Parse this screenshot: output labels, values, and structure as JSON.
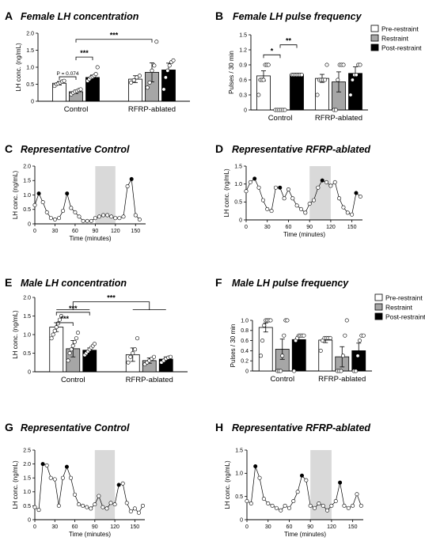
{
  "colors": {
    "pre": "#ffffff",
    "restraint": "#a6a6a6",
    "post": "#000000",
    "shade": "#d9d9d9"
  },
  "legend": [
    "Pre-restraint",
    "Restraint",
    "Post-restraint"
  ],
  "chart_data": [
    {
      "id": "A",
      "type": "bar",
      "label": "A",
      "title": "Female LH concentration",
      "ylabel": "LH conc. (ng/mL)",
      "ylim": [
        0,
        2.0
      ],
      "yticks": [
        0,
        0.5,
        1.0,
        1.5,
        2.0
      ],
      "categories": [
        "Control",
        "RFRP-ablated"
      ],
      "series": [
        {
          "name": "Pre-restraint",
          "values": [
            0.53,
            0.65
          ],
          "errors": [
            0.05,
            0.1
          ],
          "points": [
            [
              0.45,
              0.5,
              0.52,
              0.55,
              0.58,
              0.6
            ],
            [
              0.55,
              0.62,
              0.7,
              0.75
            ]
          ]
        },
        {
          "name": "Restraint",
          "values": [
            0.28,
            0.85
          ],
          "errors": [
            0.05,
            0.28
          ],
          "points": [
            [
              0.2,
              0.25,
              0.28,
              0.3,
              0.33,
              0.35
            ],
            [
              0.4,
              0.55,
              0.9,
              1.05,
              1.75
            ]
          ]
        },
        {
          "name": "Post-restraint",
          "values": [
            0.7,
            0.92
          ],
          "errors": [
            0.07,
            0.2
          ],
          "points": [
            [
              0.6,
              0.65,
              0.7,
              0.72,
              0.75,
              0.8,
              1.0
            ],
            [
              0.35,
              0.7,
              0.9,
              1.05,
              1.15,
              1.2
            ]
          ]
        }
      ],
      "brackets": [
        {
          "from": [
            0,
            0
          ],
          "to": [
            0,
            1
          ],
          "y": 0.72,
          "text": "P = 0.074",
          "kind": "ann"
        },
        {
          "from": [
            0,
            1
          ],
          "to": [
            0,
            2
          ],
          "y": 1.3,
          "text": "***",
          "kind": "sig"
        },
        {
          "from": [
            0,
            1
          ],
          "to": [
            1,
            1
          ],
          "y": 1.82,
          "text": "***",
          "kind": "sig"
        }
      ]
    },
    {
      "id": "B",
      "type": "bar",
      "label": "B",
      "title": "Female LH pulse frequency",
      "ylabel": "Pulses / 30 min",
      "ylim": [
        0,
        1.5
      ],
      "yticks": [
        0,
        0.3,
        0.6,
        0.9,
        1.2,
        1.5
      ],
      "categories": [
        "Control",
        "RFRP-ablated"
      ],
      "series": [
        {
          "name": "Pre-restraint",
          "values": [
            0.68,
            0.63
          ],
          "errors": [
            0.1,
            0.08
          ],
          "points": [
            [
              0.3,
              0.6,
              0.6,
              0.6,
              0.9,
              0.9,
              0.9
            ],
            [
              0.3,
              0.6,
              0.6,
              0.6,
              0.6,
              0.9
            ]
          ]
        },
        {
          "name": "Restraint",
          "values": [
            0.0,
            0.56
          ],
          "errors": [
            0.0,
            0.2
          ],
          "points": [
            [
              0,
              0,
              0,
              0,
              0,
              0
            ],
            [
              0,
              0,
              0.6,
              0.9,
              0.9,
              0.9
            ]
          ]
        },
        {
          "name": "Post-restraint",
          "values": [
            0.71,
            0.73
          ],
          "errors": [
            0.02,
            0.13
          ],
          "points": [
            [
              0.7,
              0.7,
              0.7,
              0.7,
              0.7,
              0.7,
              0.7
            ],
            [
              0.3,
              0.6,
              0.7,
              0.7,
              0.9,
              0.9
            ]
          ]
        }
      ],
      "brackets": [
        {
          "from": [
            0,
            0
          ],
          "to": [
            0,
            1
          ],
          "y": 1.1,
          "text": "*",
          "kind": "sig"
        },
        {
          "from": [
            0,
            1
          ],
          "to": [
            0,
            2
          ],
          "y": 1.3,
          "text": "**",
          "kind": "sig"
        }
      ]
    },
    {
      "id": "C",
      "type": "line",
      "label": "C",
      "title": "Representative Control",
      "ylabel": "LH conc. (ng/mL)",
      "xlabel": "Time (minutes)",
      "xlim": [
        0,
        165
      ],
      "xticks": [
        0,
        30,
        60,
        90,
        120,
        150
      ],
      "ylim": [
        0,
        2.0
      ],
      "yticks": [
        0,
        0.5,
        1.0,
        1.5,
        2.0
      ],
      "shade": [
        90,
        120
      ],
      "x": [
        0,
        6,
        12,
        18,
        24,
        30,
        36,
        42,
        48,
        54,
        60,
        66,
        72,
        78,
        84,
        90,
        96,
        102,
        108,
        114,
        120,
        126,
        132,
        138,
        144,
        150,
        156
      ],
      "y": [
        0.65,
        1.05,
        0.75,
        0.4,
        0.2,
        0.15,
        0.2,
        0.45,
        1.05,
        0.55,
        0.4,
        0.25,
        0.1,
        0.1,
        0.1,
        0.2,
        0.25,
        0.3,
        0.3,
        0.25,
        0.2,
        0.2,
        0.25,
        1.3,
        1.55,
        0.3,
        0.15
      ],
      "peaks": [
        1,
        8,
        24
      ]
    },
    {
      "id": "D",
      "type": "line",
      "label": "D",
      "title": "Representative RFRP-ablated",
      "ylabel": "LH conc. (ng/mL)",
      "xlabel": "Time (minutes)",
      "xlim": [
        0,
        165
      ],
      "xticks": [
        0,
        30,
        60,
        90,
        120,
        150
      ],
      "ylim": [
        0,
        1.5
      ],
      "yticks": [
        0,
        0.5,
        1.0,
        1.5
      ],
      "shade": [
        90,
        120
      ],
      "x": [
        0,
        6,
        12,
        18,
        24,
        30,
        36,
        42,
        48,
        54,
        60,
        66,
        72,
        78,
        84,
        90,
        96,
        102,
        108,
        114,
        120,
        126,
        132,
        138,
        144,
        150,
        156,
        162
      ],
      "y": [
        0.8,
        1.05,
        1.15,
        0.9,
        0.55,
        0.3,
        0.25,
        0.9,
        0.9,
        0.6,
        0.85,
        0.6,
        0.4,
        0.3,
        0.2,
        0.45,
        0.55,
        0.9,
        1.1,
        1.05,
        0.95,
        1.05,
        0.6,
        0.35,
        0.2,
        0.15,
        0.75,
        0.65
      ],
      "peaks": [
        2,
        8,
        18,
        26
      ]
    },
    {
      "id": "E",
      "type": "bar",
      "label": "E",
      "title": "Male LH concentration",
      "ylabel": "LH conc. (ng/mL)",
      "ylim": [
        0,
        2.0
      ],
      "yticks": [
        0,
        0.5,
        1.0,
        1.5,
        2.0
      ],
      "categories": [
        "Control",
        "RFRP-ablated"
      ],
      "series": [
        {
          "name": "Pre-restraint",
          "values": [
            1.2,
            0.46
          ],
          "errors": [
            0.12,
            0.18
          ],
          "points": [
            [
              0.9,
              1.0,
              1.1,
              1.2,
              1.3,
              1.4,
              1.5
            ],
            [
              0.25,
              0.4,
              0.5,
              0.6,
              0.9
            ]
          ]
        },
        {
          "name": "Restraint",
          "values": [
            0.62,
            0.3
          ],
          "errors": [
            0.22,
            0.07
          ],
          "points": [
            [
              0.3,
              0.5,
              0.6,
              0.7,
              0.8,
              0.9,
              1.05
            ],
            [
              0.2,
              0.25,
              0.3,
              0.35,
              0.4
            ]
          ]
        },
        {
          "name": "Post-restraint",
          "values": [
            0.58,
            0.34
          ],
          "errors": [
            0.06,
            0.06
          ],
          "points": [
            [
              0.45,
              0.5,
              0.55,
              0.6,
              0.65,
              0.7,
              0.75
            ],
            [
              0.25,
              0.3,
              0.35,
              0.38,
              0.4
            ]
          ]
        }
      ],
      "brackets": [
        {
          "from": [
            0,
            0
          ],
          "to": [
            0,
            2
          ],
          "y": 1.6,
          "text": "***",
          "kind": "sig"
        },
        {
          "from": [
            0,
            0
          ],
          "to": [
            0,
            1
          ],
          "y": 1.32,
          "text": "***",
          "kind": "sig"
        },
        {
          "from": [
            0,
            0
          ],
          "to": [
            1,
            0
          ],
          "y": 1.6,
          "text": "",
          "kind": "none"
        }
      ],
      "groupBracket": {
        "y": 1.88,
        "text": "***"
      }
    },
    {
      "id": "F",
      "type": "bar",
      "label": "F",
      "title": "Male LH pulse frequency",
      "ylabel": "Pulses / 30 min",
      "ylim": [
        0,
        1.0
      ],
      "yticks": [
        0,
        0.2,
        0.4,
        0.6,
        0.8,
        1.0
      ],
      "categories": [
        "Control",
        "RFRP-ablated"
      ],
      "series": [
        {
          "name": "Pre-restraint",
          "values": [
            0.86,
            0.61
          ],
          "errors": [
            0.09,
            0.05
          ],
          "points": [
            [
              0.3,
              0.6,
              0.9,
              1.0,
              1.0,
              1.0,
              1.0
            ],
            [
              0.4,
              0.6,
              0.65,
              0.65,
              0.65,
              0.65
            ]
          ]
        },
        {
          "name": "Restraint",
          "values": [
            0.43,
            0.28
          ],
          "errors": [
            0.2,
            0.2
          ],
          "points": [
            [
              0,
              0,
              0,
              0.3,
              0.7,
              1.0,
              1.0
            ],
            [
              0,
              0,
              0,
              0.3,
              0.7,
              1.0
            ]
          ]
        },
        {
          "name": "Post-restraint",
          "values": [
            0.62,
            0.4
          ],
          "errors": [
            0.08,
            0.15
          ],
          "points": [
            [
              0,
              0.6,
              0.65,
              0.7,
              0.7,
              0.7,
              0.7
            ],
            [
              0,
              0,
              0.3,
              0.6,
              0.7,
              0.7
            ]
          ]
        }
      ]
    },
    {
      "id": "G",
      "type": "line",
      "label": "G",
      "title": "Representative Control",
      "ylabel": "LH conc. (ng/mL)",
      "xlabel": "Time (minutes)",
      "xlim": [
        0,
        165
      ],
      "xticks": [
        0,
        30,
        60,
        90,
        120,
        150
      ],
      "ylim": [
        0,
        2.5
      ],
      "yticks": [
        0,
        0.5,
        1.0,
        1.5,
        2.0,
        2.5
      ],
      "shade": [
        90,
        120
      ],
      "x": [
        0,
        6,
        12,
        18,
        24,
        30,
        36,
        42,
        48,
        54,
        60,
        66,
        72,
        78,
        84,
        90,
        96,
        102,
        108,
        114,
        120,
        126,
        132,
        138,
        144,
        150,
        156,
        162
      ],
      "y": [
        0.45,
        0.35,
        2.0,
        1.95,
        1.5,
        1.45,
        0.5,
        1.5,
        1.9,
        1.5,
        0.9,
        0.55,
        0.5,
        0.45,
        0.4,
        0.55,
        0.85,
        0.45,
        0.4,
        0.6,
        0.55,
        1.25,
        1.3,
        0.6,
        0.3,
        0.4,
        0.25,
        0.5
      ],
      "peaks": [
        2,
        8,
        21
      ]
    },
    {
      "id": "H",
      "type": "line",
      "label": "H",
      "title": "Representative RFRP-ablated",
      "ylabel": "LH conc. (ng/mL)",
      "xlabel": "Time (minutes)",
      "xlim": [
        0,
        165
      ],
      "xticks": [
        0,
        30,
        60,
        90,
        120,
        150
      ],
      "ylim": [
        0,
        1.5
      ],
      "yticks": [
        0,
        0.5,
        1.0,
        1.5
      ],
      "shade": [
        90,
        120
      ],
      "x": [
        0,
        6,
        12,
        18,
        24,
        30,
        36,
        42,
        48,
        54,
        60,
        66,
        72,
        78,
        84,
        90,
        96,
        102,
        108,
        114,
        120,
        126,
        132,
        138,
        144,
        150,
        156,
        162
      ],
      "y": [
        0.4,
        0.35,
        1.15,
        0.9,
        0.45,
        0.35,
        0.3,
        0.25,
        0.2,
        0.3,
        0.25,
        0.4,
        0.6,
        0.95,
        0.85,
        0.3,
        0.25,
        0.35,
        0.3,
        0.2,
        0.3,
        0.4,
        0.8,
        0.3,
        0.25,
        0.3,
        0.55,
        0.3
      ],
      "peaks": [
        2,
        13,
        22
      ]
    }
  ]
}
